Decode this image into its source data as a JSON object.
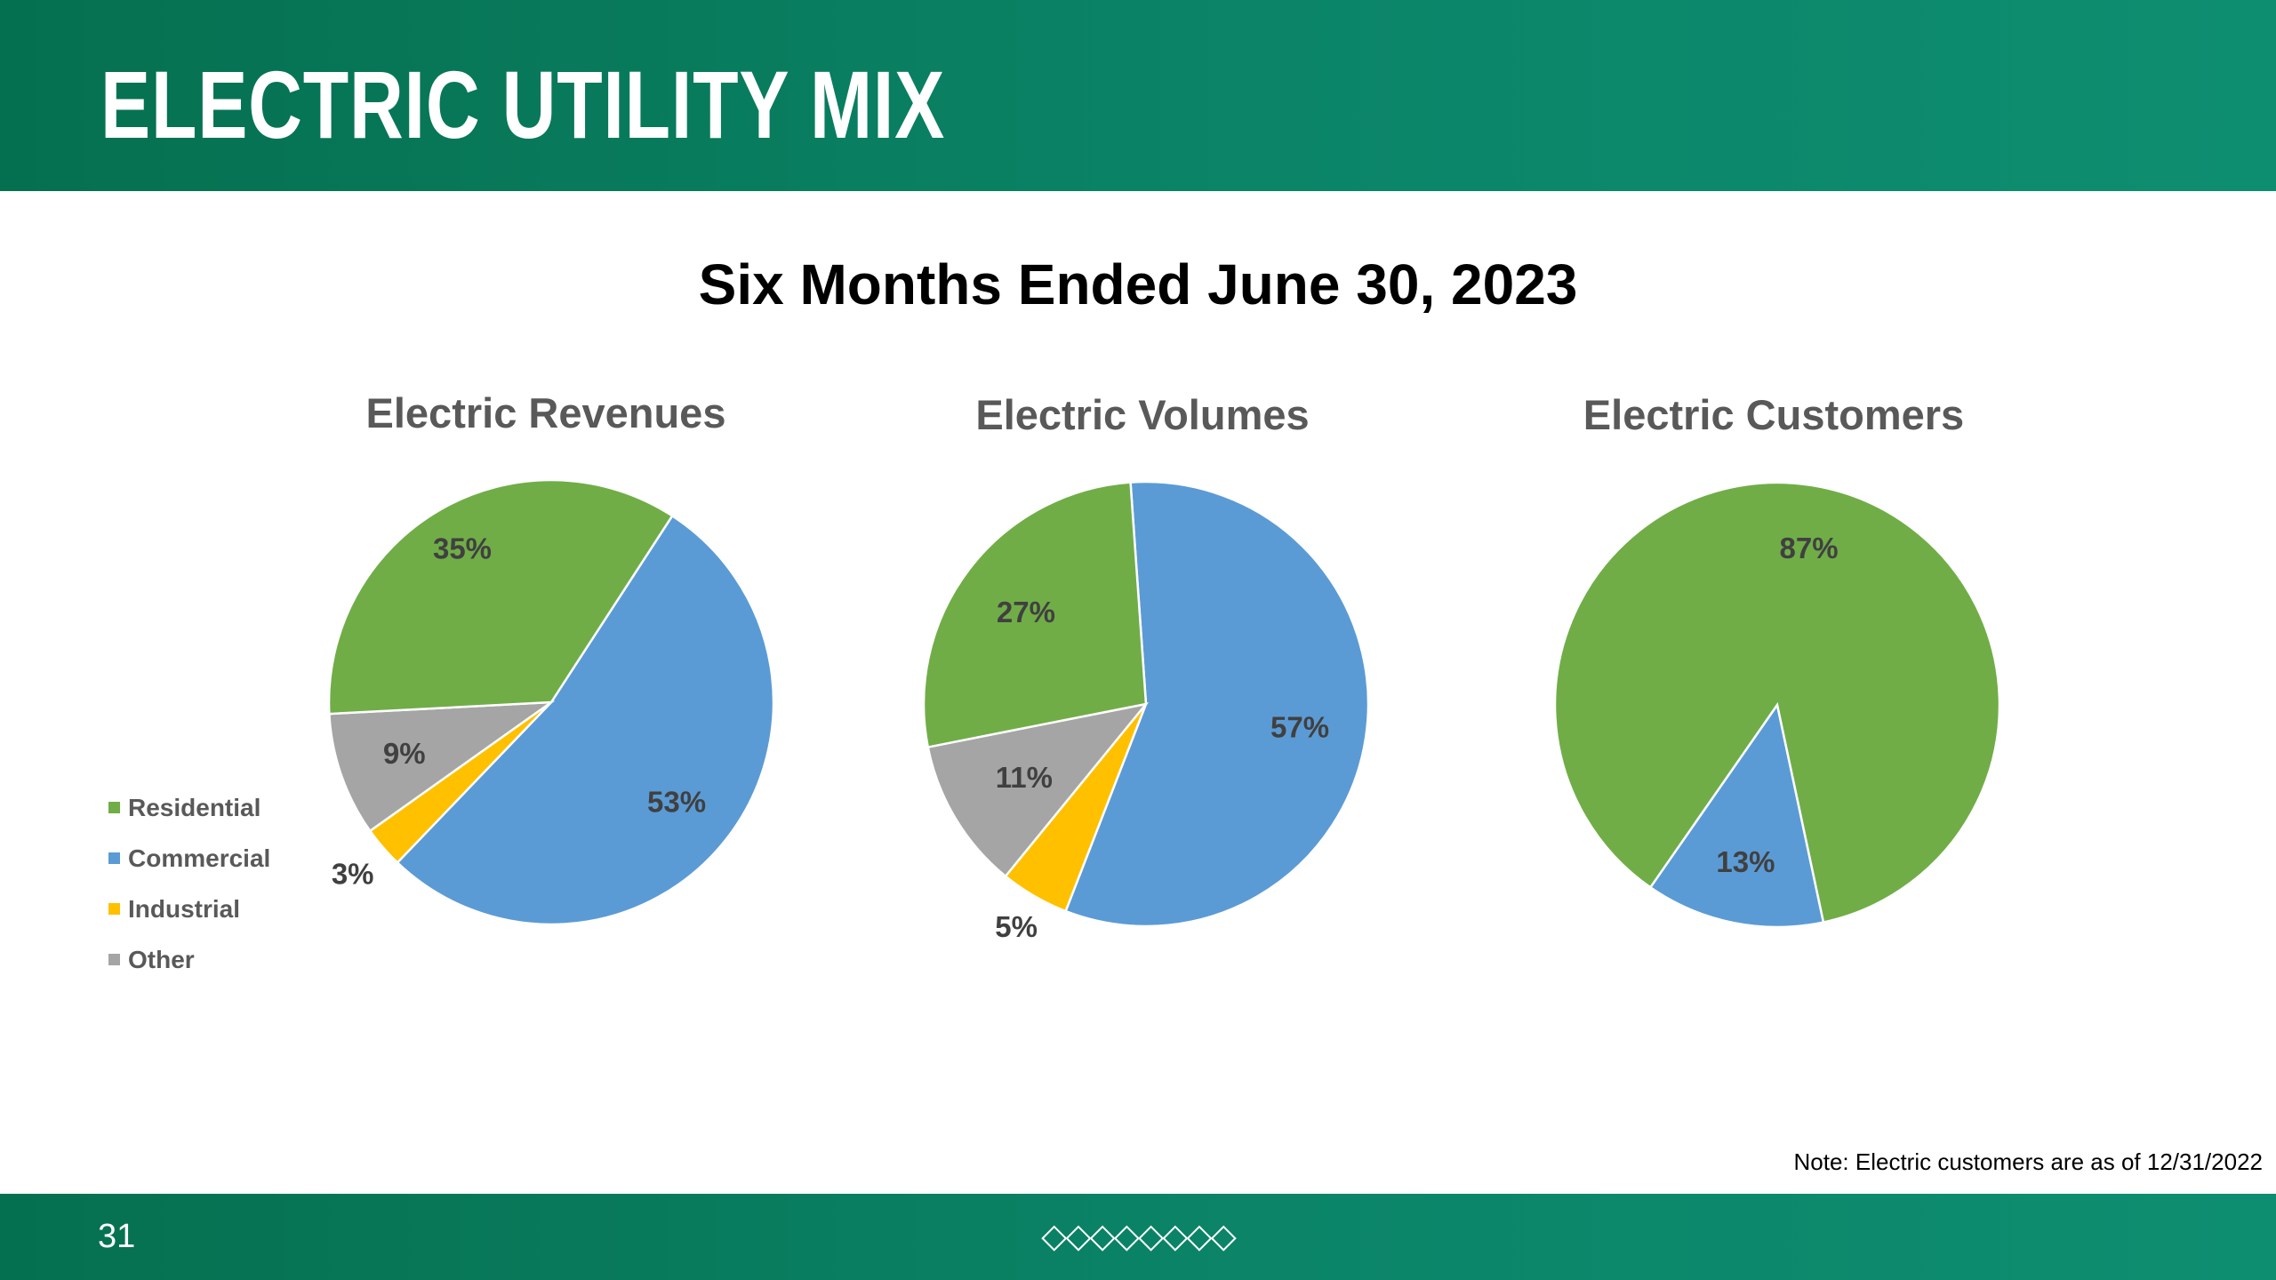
{
  "header": {
    "title": "ELECTRIC UTILITY MIX"
  },
  "subtitle": "Six Months Ended June 30, 2023",
  "legend": {
    "items": [
      {
        "label": "Residential",
        "color": "#70ad47"
      },
      {
        "label": "Commercial",
        "color": "#5b9bd5"
      },
      {
        "label": "Industrial",
        "color": "#ffc000"
      },
      {
        "label": "Other",
        "color": "#a5a5a5"
      }
    ]
  },
  "chart_data": [
    {
      "type": "pie",
      "title": "Electric Revenues",
      "categories": [
        "Commercial",
        "Industrial",
        "Other",
        "Residential"
      ],
      "values": [
        53,
        3,
        9,
        35
      ],
      "labels": [
        "53%",
        "3%",
        "9%",
        "35%"
      ],
      "colors": [
        "#5b9bd5",
        "#ffc000",
        "#a5a5a5",
        "#70ad47"
      ],
      "start_angle_deg": -57
    },
    {
      "type": "pie",
      "title": "Electric Volumes",
      "categories": [
        "Commercial",
        "Industrial",
        "Other",
        "Residential"
      ],
      "values": [
        57,
        5,
        11,
        27
      ],
      "labels": [
        "57%",
        "5%",
        "11%",
        "27%"
      ],
      "colors": [
        "#5b9bd5",
        "#ffc000",
        "#a5a5a5",
        "#70ad47"
      ],
      "start_angle_deg": -94
    },
    {
      "type": "pie",
      "title": "Electric Customers",
      "categories": [
        "Commercial",
        "Residential"
      ],
      "values": [
        13,
        87
      ],
      "labels": [
        "13%",
        "87%"
      ],
      "colors": [
        "#5b9bd5",
        "#70ad47"
      ],
      "start_angle_deg": 78
    }
  ],
  "note": "Note: Electric customers are as of 12/31/2022",
  "footer": {
    "page_number": "31",
    "ornament": "◇◇◇◇◇◇◇◇"
  }
}
